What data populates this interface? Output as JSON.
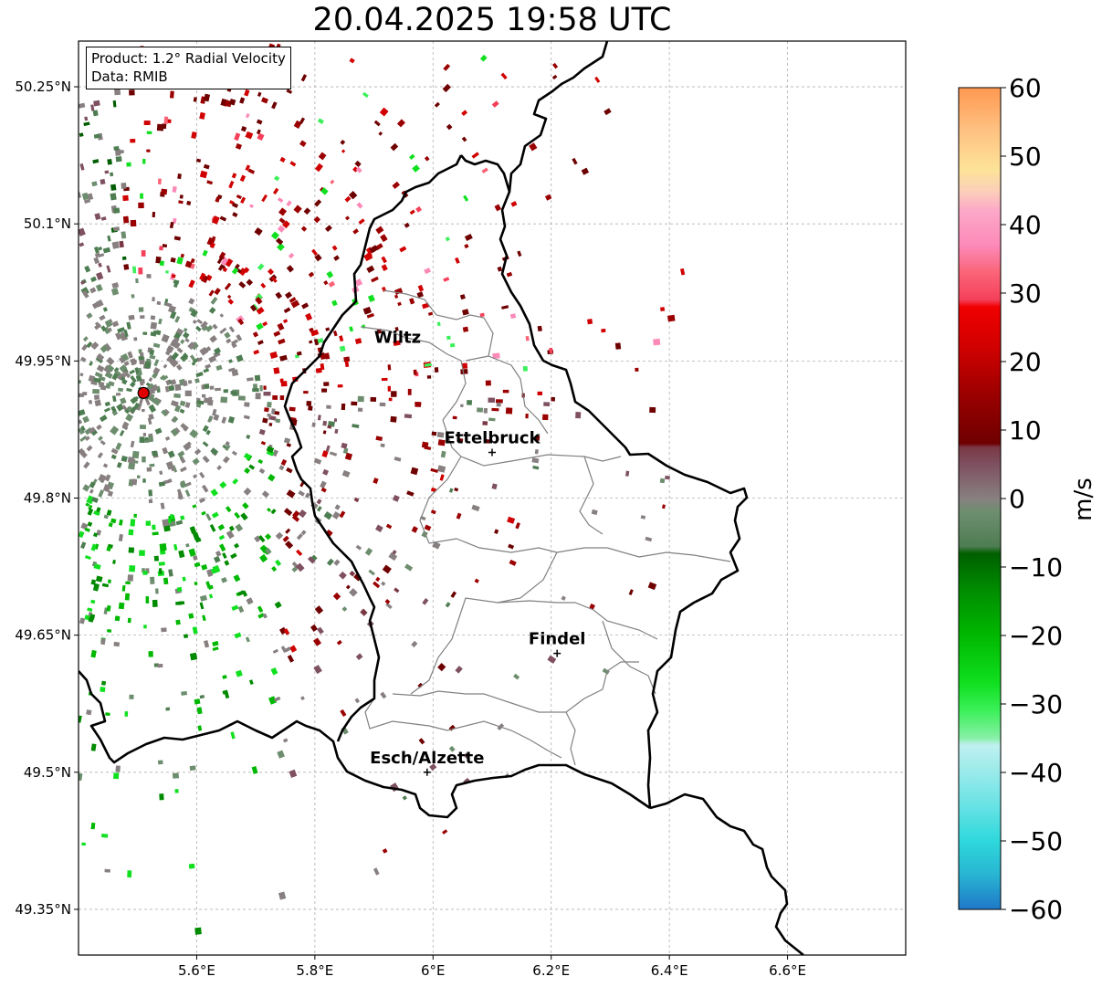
{
  "title": "20.04.2025 19:58 UTC",
  "infobox": {
    "line1": "Product: 1.2° Radial Velocity",
    "line2": "Data: RMIB"
  },
  "axes": {
    "lon_ticks": [
      "5.6°E",
      "5.8°E",
      "6°E",
      "6.2°E",
      "6.4°E",
      "6.6°E"
    ],
    "lat_ticks": [
      "50.25°N",
      "50.1°N",
      "49.95°N",
      "49.8°N",
      "49.65°N",
      "49.5°N",
      "49.35°N"
    ],
    "lon_values": [
      5.6,
      5.8,
      6.0,
      6.2,
      6.4,
      6.6
    ],
    "lat_values": [
      50.25,
      50.1,
      49.95,
      49.8,
      49.65,
      49.5,
      49.35
    ],
    "lon_range": [
      5.4,
      6.8
    ],
    "lat_range": [
      49.3,
      50.3
    ],
    "grid": true
  },
  "places": [
    {
      "name": "Wiltz",
      "lon": 5.94,
      "lat": 49.97,
      "marker": false
    },
    {
      "name": "Ettelbruck",
      "lon": 6.1,
      "lat": 49.85,
      "marker": true
    },
    {
      "name": "Findel",
      "lon": 6.21,
      "lat": 49.63,
      "marker": true
    },
    {
      "name": "Esch/Alzette",
      "lon": 5.99,
      "lat": 49.5,
      "marker": true
    }
  ],
  "radar": {
    "lon": 5.51,
    "lat": 49.915,
    "color": "#e00000"
  },
  "colorbar": {
    "label": "m/s",
    "ticks": [
      "60",
      "50",
      "40",
      "30",
      "20",
      "10",
      "0",
      "−10",
      "−20",
      "−30",
      "−40",
      "−50",
      "−60"
    ],
    "min": -60,
    "max": 60,
    "stops": [
      {
        "v": -60,
        "c": "#1f78c8"
      },
      {
        "v": -55,
        "c": "#28b4d2"
      },
      {
        "v": -50,
        "c": "#2ed8dc"
      },
      {
        "v": -45,
        "c": "#66e2e4"
      },
      {
        "v": -40,
        "c": "#9aeaea"
      },
      {
        "v": -36,
        "c": "#c0f0f0"
      },
      {
        "v": -35,
        "c": "#88f0a8"
      },
      {
        "v": -31,
        "c": "#3cf05a"
      },
      {
        "v": -27,
        "c": "#10e020"
      },
      {
        "v": -20,
        "c": "#00b800"
      },
      {
        "v": -13,
        "c": "#008a00"
      },
      {
        "v": -8,
        "c": "#005e00"
      },
      {
        "v": -7,
        "c": "#4e7d52"
      },
      {
        "v": -2,
        "c": "#6d8e6e"
      },
      {
        "v": 0,
        "c": "#888080"
      },
      {
        "v": 5,
        "c": "#7e5060"
      },
      {
        "v": 7.5,
        "c": "#7a3844"
      },
      {
        "v": 8,
        "c": "#6e0000"
      },
      {
        "v": 15,
        "c": "#9a0000"
      },
      {
        "v": 22,
        "c": "#d00000"
      },
      {
        "v": 28,
        "c": "#f00000"
      },
      {
        "v": 29,
        "c": "#f5405a"
      },
      {
        "v": 33,
        "c": "#fa6478"
      },
      {
        "v": 37,
        "c": "#fc8ab8"
      },
      {
        "v": 42,
        "c": "#fca8c8"
      },
      {
        "v": 45,
        "c": "#fcd0b8"
      },
      {
        "v": 48,
        "c": "#fde398"
      },
      {
        "v": 54,
        "c": "#fec080"
      },
      {
        "v": 60,
        "c": "#fe9850"
      }
    ]
  }
}
